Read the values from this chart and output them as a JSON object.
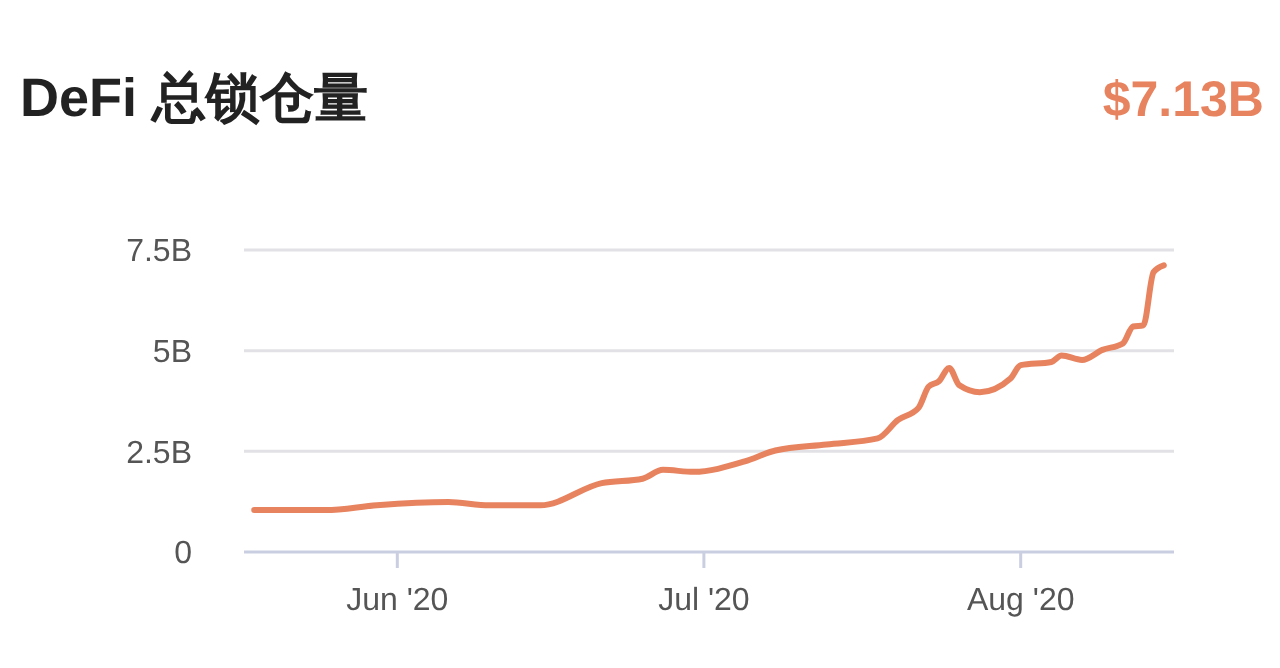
{
  "chart_data": {
    "type": "line",
    "title": "DeFi 总锁仓量",
    "subtitle": "$7.13B",
    "x": [
      "2020-05-18",
      "2020-05-25",
      "2020-05-30",
      "2020-06-06",
      "2020-06-10",
      "2020-06-15",
      "2020-06-21",
      "2020-06-25",
      "2020-06-27",
      "2020-06-30",
      "2020-07-05",
      "2020-07-08",
      "2020-07-13",
      "2020-07-18",
      "2020-07-20",
      "2020-07-22",
      "2020-07-23",
      "2020-07-24",
      "2020-07-25",
      "2020-07-26",
      "2020-07-28",
      "2020-07-31",
      "2020-08-01",
      "2020-08-04",
      "2020-08-05",
      "2020-08-07",
      "2020-08-09",
      "2020-08-11",
      "2020-08-12",
      "2020-08-13",
      "2020-08-14",
      "2020-08-15"
    ],
    "series": [
      {
        "color": "#e8835f",
        "values": [
          1.04,
          1.04,
          1.16,
          1.24,
          1.16,
          1.16,
          1.71,
          1.82,
          2.04,
          1.99,
          2.25,
          2.52,
          2.67,
          2.82,
          3.28,
          3.58,
          4.11,
          4.24,
          4.57,
          4.14,
          3.97,
          4.31,
          4.64,
          4.72,
          4.88,
          4.77,
          5.02,
          5.18,
          5.6,
          5.63,
          6.95,
          7.12
        ]
      }
    ],
    "xlim": [
      "2020-05-17",
      "2020-08-16"
    ],
    "xticks": [
      {
        "value": "2020-06-01",
        "label": "Jun '20"
      },
      {
        "value": "2020-07-01",
        "label": "Jul '20"
      },
      {
        "value": "2020-08-01",
        "label": "Aug '20"
      }
    ],
    "ylim": [
      0,
      7.5
    ],
    "yticks": [
      0,
      {
        "value": 2.5,
        "label": "2.5B"
      },
      {
        "value": 5,
        "label": "5B"
      },
      {
        "value": 7.5,
        "label": "7.5B"
      }
    ],
    "grid": "y",
    "marker": "none",
    "line_style": "solid"
  }
}
